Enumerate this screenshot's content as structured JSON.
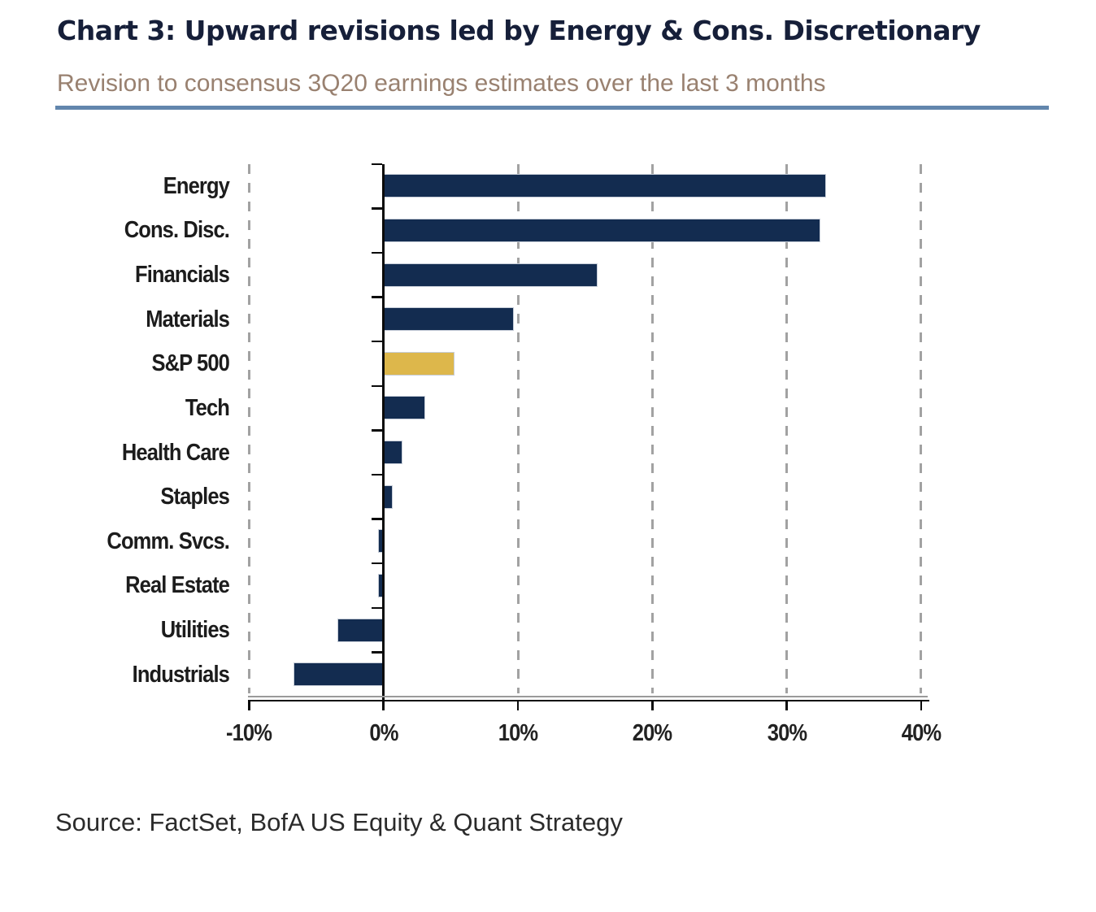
{
  "header": {
    "title": "Chart 3: Upward revisions led by Energy & Cons. Discretionary",
    "subtitle": "Revision to consensus 3Q20 earnings estimates over the last 3 months"
  },
  "source": "Source: FactSet, BofA US Equity & Quant Strategy",
  "colors": {
    "bar_navy": "#132c50",
    "bar_gold": "#ddb74b",
    "divider_blue": "#6286ad",
    "title_navy": "#161f39",
    "subtitle_taupe": "#998170",
    "gridline_gray": "#a2a2a2"
  },
  "chart_data": {
    "type": "bar",
    "orientation": "horizontal",
    "title": "Chart 3: Upward revisions led by Energy & Cons. Discretionary",
    "subtitle": "Revision to consensus 3Q20 earnings estimates over the last 3 months",
    "categories": [
      "Energy",
      "Cons. Disc.",
      "Financials",
      "Materials",
      "S&P 500",
      "Tech",
      "Health Care",
      "Staples",
      "Comm. Svcs.",
      "Real Estate",
      "Utilities",
      "Industrials"
    ],
    "values": [
      32.9,
      32.5,
      15.9,
      9.7,
      5.3,
      3.1,
      1.4,
      0.7,
      -0.4,
      -0.4,
      -3.4,
      -6.7
    ],
    "value_unit": "%",
    "highlight_category": "S&P 500",
    "bar_color": "#132c50",
    "highlight_color": "#ddb74b",
    "xlabel": "",
    "ylabel": "",
    "xlim": [
      -10,
      40
    ],
    "x_ticks": [
      -10,
      0,
      10,
      20,
      30,
      40
    ],
    "x_tick_labels": [
      "-10%",
      "0%",
      "10%",
      "20%",
      "30%",
      "40%"
    ],
    "grid": "vertical-dashed",
    "legend": "none"
  }
}
